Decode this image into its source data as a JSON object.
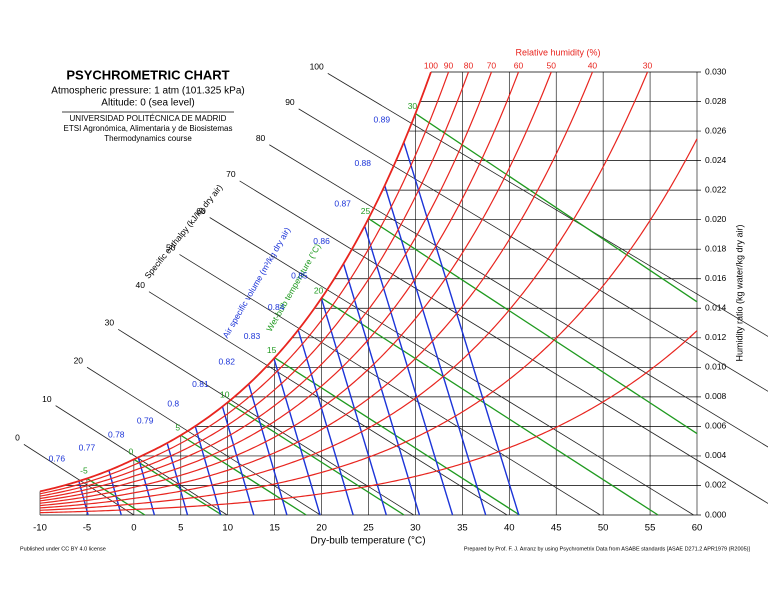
{
  "chart_data": {
    "type": "psychrometric",
    "title": "PSYCHROMETRIC CHART",
    "subtitle": [
      "Atmospheric pressure: 1 atm (101.325 kPa)",
      "Altitude: 0 (sea level)"
    ],
    "institution": [
      "UNIVERSIDAD POLITÉCNICA DE MADRID",
      "ETSI Agronómica, Alimentaria y de Biosistemas",
      "Thermodynamics course"
    ],
    "pressure": 101.325,
    "xlabel": "Dry-bulb temperature (°C)",
    "ylabel": "Humidity ratio (kg water/kg dry air)",
    "xlim": [
      -10,
      60
    ],
    "xticks": [
      -10,
      -5,
      0,
      5,
      10,
      15,
      20,
      25,
      30,
      35,
      40,
      45,
      50,
      55,
      60
    ],
    "ylim": [
      0,
      0.03
    ],
    "yticks": [
      {
        "value": 0,
        "label": "0.000"
      },
      {
        "value": 0.002,
        "label": "0.002"
      },
      {
        "value": 0.004,
        "label": "0.004"
      },
      {
        "value": 0.006,
        "label": "0.006"
      },
      {
        "value": 0.008,
        "label": "0.008"
      },
      {
        "value": 0.01,
        "label": "0.010"
      },
      {
        "value": 0.012,
        "label": "0.012"
      },
      {
        "value": 0.014,
        "label": "0.014"
      },
      {
        "value": 0.016,
        "label": "0.016"
      },
      {
        "value": 0.018,
        "label": "0.018"
      },
      {
        "value": 0.02,
        "label": "0.020"
      },
      {
        "value": 0.022,
        "label": "0.022"
      },
      {
        "value": 0.024,
        "label": "0.024"
      },
      {
        "value": 0.026,
        "label": "0.026"
      },
      {
        "value": 0.028,
        "label": "0.028"
      },
      {
        "value": 0.03,
        "label": "0.030"
      }
    ],
    "grid": true,
    "rh": {
      "label": "Relative humidity (%)",
      "color": "#e8251f",
      "values": [
        100,
        90,
        80,
        70,
        60,
        50,
        40,
        30
      ],
      "unlabeled_values": [
        20,
        10
      ]
    },
    "enthalpy": {
      "label": "Specific enthalpy (kJ/kg dry air)",
      "color": "#222222",
      "values": [
        0,
        10,
        20,
        30,
        40,
        50,
        60,
        70,
        80,
        90,
        100
      ]
    },
    "volume": {
      "label": "Air specific volume (m³/kg dry air)",
      "color": "#1c34d8",
      "values": [
        0.76,
        0.77,
        0.78,
        0.79,
        0.8,
        0.81,
        0.82,
        0.83,
        0.84,
        0.85,
        0.86,
        0.87,
        0.88,
        0.89
      ]
    },
    "wet_bulb": {
      "label": "Wet-bulb temperature (°C)",
      "color": "#1f9a1f",
      "values": [
        -5,
        0,
        5,
        10,
        15,
        20,
        25,
        30
      ]
    },
    "footer_left": "Published under CC BY 4.0 license",
    "footer_right": "Prepared by Prof. F. J. Arranz by using Psychrometrix Data from ASABE standards [ASAE D271.2 APR1979 (R2005)]"
  }
}
